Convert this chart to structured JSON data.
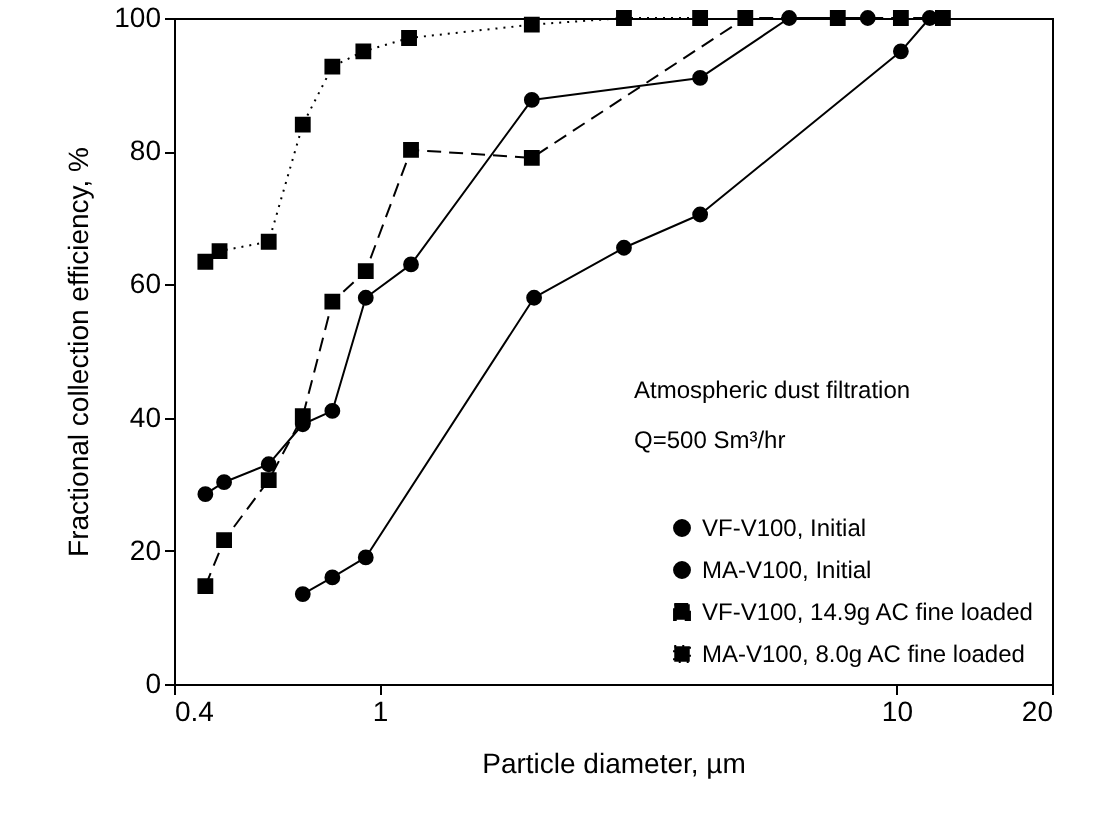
{
  "chart_data": {
    "type": "line",
    "xlabel": "Particle diameter, µm",
    "ylabel": "Fractional collection efficiency, %",
    "log": "x",
    "xlim": [
      0.4,
      20
    ],
    "xticks": [
      0.4,
      1,
      10,
      20
    ],
    "ylim": [
      0,
      100
    ],
    "yticks": [
      0,
      20,
      40,
      60,
      80,
      100
    ],
    "grid": false,
    "legend": "bottom right",
    "annotations": [
      "Atmospheric dust filtration",
      "Q=500 Sm³/hr"
    ],
    "series": [
      {
        "name": "VF-V100,  Initial",
        "color": "#000000",
        "marker": "circle",
        "line_style": "solid",
        "x": [
          0.71,
          0.81,
          0.94,
          1.99,
          2.97,
          4.17,
          10.2,
          11.6
        ],
        "values": [
          13.5,
          16,
          19,
          58,
          65.5,
          70.5,
          95,
          100
        ]
      },
      {
        "name": "MA-V100,  Initial",
        "color": "#000000",
        "marker": "circle",
        "line_style": "solid",
        "x": [
          0.46,
          0.5,
          0.61,
          0.71,
          0.81,
          0.94,
          1.15,
          1.97,
          4.17,
          6.2,
          8.8
        ],
        "values": [
          28.5,
          30.3,
          33,
          39,
          41,
          58,
          63,
          87.7,
          91,
          100,
          100
        ]
      },
      {
        "name": "VF-V100, 14.9g AC fine loaded",
        "color": "#000000",
        "marker": "square",
        "line_style": "dashed",
        "x": [
          0.46,
          0.5,
          0.61,
          0.71,
          0.81,
          0.94,
          1.15,
          1.97,
          5.1,
          7.7,
          10.2,
          12.3
        ],
        "values": [
          14.7,
          21.6,
          30.6,
          40.2,
          57.4,
          62,
          80.2,
          79,
          100,
          100,
          100,
          100
        ]
      },
      {
        "name": "MA-V100, 8.0g AC fine loaded",
        "color": "#000000",
        "marker": "square",
        "line_style": "dotted",
        "x": [
          0.46,
          0.49,
          0.61,
          0.71,
          0.81,
          0.93,
          1.14,
          1.97,
          2.97,
          4.17
        ],
        "values": [
          63.4,
          65,
          66.4,
          84,
          92.7,
          95,
          97,
          99,
          100,
          100
        ]
      }
    ]
  }
}
